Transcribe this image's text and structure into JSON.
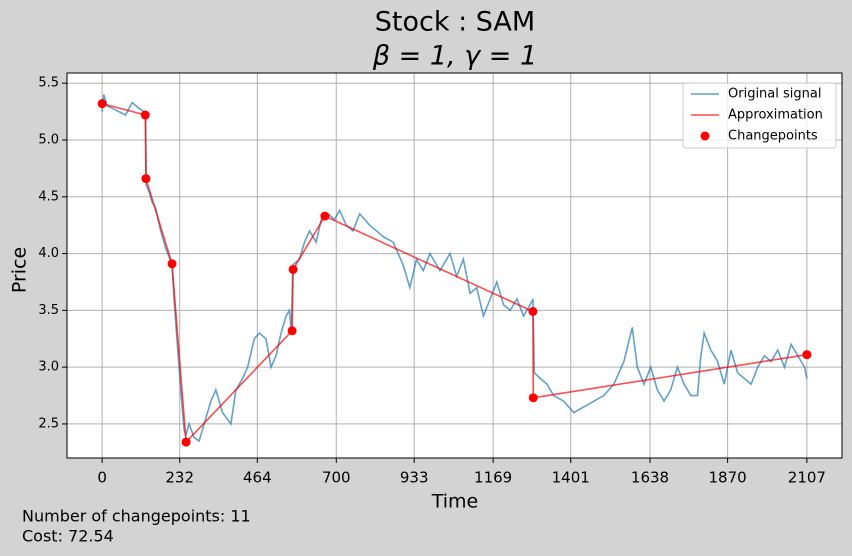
{
  "chart_data": {
    "type": "line",
    "title": [
      "Stock : SAM",
      "β = 1, γ = 1"
    ],
    "xlabel": "Time",
    "ylabel": "Price",
    "annotations": [
      "Number of changepoints: 11",
      "Cost: 72.54"
    ],
    "xlim": [
      -105,
      2212
    ],
    "ylim": [
      2.2,
      5.59
    ],
    "xticks": [
      0,
      232,
      464,
      700,
      933,
      1169,
      1401,
      1638,
      1870,
      2107
    ],
    "yticks": [
      {
        "value": 2.5,
        "label": "2.5"
      },
      {
        "value": 3,
        "label": "3.0"
      },
      {
        "value": 3.5,
        "label": "3.5"
      },
      {
        "value": 4,
        "label": "4.0"
      },
      {
        "value": 4.5,
        "label": "4.5"
      },
      {
        "value": 5,
        "label": "5.0"
      },
      {
        "value": 5.5,
        "label": "5.5"
      }
    ],
    "grid": true,
    "legend": "upper right",
    "series": [
      {
        "name": "Original signal",
        "color": "#1f77b4",
        "style": "line",
        "x": [
          0,
          5,
          15,
          30,
          50,
          70,
          90,
          110,
          125,
          130,
          132,
          140,
          150,
          160,
          175,
          190,
          209,
          215,
          225,
          235,
          245,
          250,
          260,
          275,
          290,
          310,
          325,
          340,
          360,
          385,
          400,
          420,
          435,
          455,
          470,
          490,
          505,
          520,
          535,
          550,
          560,
          566,
          570,
          590,
          605,
          620,
          640,
          655,
          675,
          695,
          710,
          730,
          750,
          770,
          800,
          840,
          870,
          900,
          920,
          940,
          960,
          980,
          1010,
          1040,
          1060,
          1080,
          1100,
          1120,
          1140,
          1160,
          1180,
          1200,
          1220,
          1240,
          1260,
          1280,
          1288,
          1292,
          1310,
          1330,
          1350,
          1380,
          1410,
          1440,
          1470,
          1500,
          1530,
          1560,
          1585,
          1600,
          1620,
          1640,
          1660,
          1680,
          1700,
          1720,
          1740,
          1760,
          1780,
          1790,
          1800,
          1820,
          1840,
          1860,
          1880,
          1900,
          1920,
          1940,
          1960,
          1980,
          2000,
          2020,
          2040,
          2060,
          2080,
          2100,
          2107
        ],
        "values": [
          5.25,
          5.4,
          5.3,
          5.28,
          5.25,
          5.22,
          5.33,
          5.28,
          5.25,
          5.2,
          4.6,
          4.55,
          4.45,
          4.4,
          4.2,
          4.05,
          3.9,
          3.6,
          3.2,
          2.8,
          2.45,
          2.4,
          2.5,
          2.38,
          2.35,
          2.55,
          2.7,
          2.8,
          2.6,
          2.5,
          2.8,
          2.9,
          3.0,
          3.25,
          3.3,
          3.25,
          3.0,
          3.1,
          3.3,
          3.45,
          3.5,
          3.3,
          3.9,
          3.95,
          4.1,
          4.2,
          4.1,
          4.3,
          4.35,
          4.3,
          4.38,
          4.25,
          4.2,
          4.35,
          4.25,
          4.15,
          4.1,
          3.9,
          3.7,
          3.95,
          3.85,
          4.0,
          3.85,
          4.0,
          3.8,
          3.95,
          3.65,
          3.7,
          3.45,
          3.6,
          3.75,
          3.55,
          3.5,
          3.6,
          3.45,
          3.55,
          3.6,
          2.95,
          2.9,
          2.85,
          2.75,
          2.7,
          2.6,
          2.65,
          2.7,
          2.75,
          2.85,
          3.05,
          3.35,
          3.0,
          2.85,
          3.0,
          2.8,
          2.7,
          2.8,
          3.0,
          2.85,
          2.75,
          2.75,
          3.1,
          3.3,
          3.15,
          3.05,
          2.85,
          3.15,
          2.95,
          2.9,
          2.85,
          3.0,
          3.1,
          3.05,
          3.15,
          3.0,
          3.2,
          3.1,
          3.0,
          2.9
        ]
      },
      {
        "name": "Approximation",
        "color": "#ff0000",
        "style": "line",
        "x": [
          0,
          129,
          131,
          209,
          251,
          568,
          571,
          666,
          1288,
          1289,
          2107
        ],
        "values": [
          5.32,
          5.22,
          4.66,
          3.91,
          2.34,
          3.32,
          3.86,
          4.33,
          3.49,
          2.73,
          3.11
        ]
      },
      {
        "name": "Changepoints",
        "color": "#ff0000",
        "style": "marker",
        "x": [
          0,
          129,
          131,
          209,
          251,
          568,
          571,
          666,
          1288,
          1289,
          2107
        ],
        "values": [
          5.32,
          5.22,
          4.66,
          3.91,
          2.34,
          3.32,
          3.86,
          4.33,
          3.49,
          2.73,
          3.11
        ]
      }
    ]
  }
}
